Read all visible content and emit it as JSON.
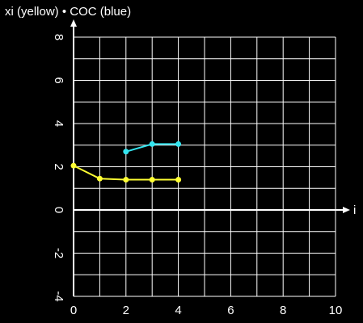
{
  "chart_data": {
    "type": "line",
    "title": "xi (yellow) • COC (blue)",
    "x_label": "i",
    "series": [
      {
        "color": "#ffff33",
        "x": [
          0,
          1,
          2,
          3,
          4
        ],
        "values": [
          2.05,
          1.45,
          1.4,
          1.4,
          1.4
        ]
      },
      {
        "color": "#33e5f0",
        "x": [
          2,
          3,
          4
        ],
        "values": [
          2.7,
          3.05,
          3.05
        ]
      }
    ],
    "xlim": [
      0,
      10
    ],
    "xticks": [
      0,
      2,
      4,
      6,
      8,
      10
    ],
    "ylim": [
      -4,
      8
    ],
    "yticks": [
      -4,
      -2,
      0,
      2,
      4,
      6,
      8
    ],
    "grid": true
  }
}
